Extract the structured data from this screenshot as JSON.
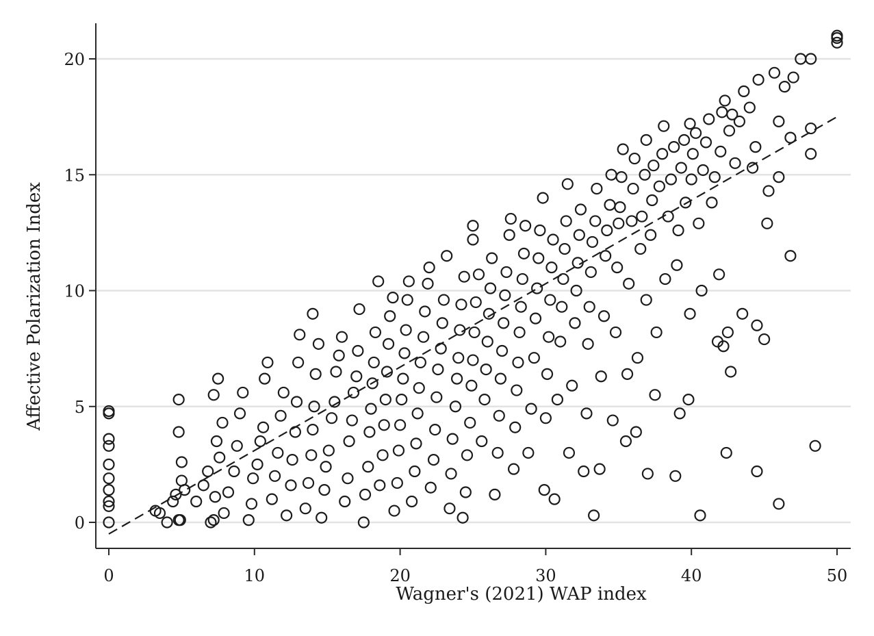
{
  "chart_data": {
    "type": "scatter",
    "title": "",
    "xlabel": "Wagner's (2021) WAP index",
    "ylabel": "Affective Polarization Index",
    "xlim": [
      -1,
      51
    ],
    "ylim": [
      -1.1,
      21.6
    ],
    "x_ticks": [
      0,
      10,
      20,
      30,
      40,
      50
    ],
    "y_ticks": [
      0,
      5,
      10,
      15,
      20
    ],
    "x_tick_labels": [
      "0",
      "10",
      "20",
      "30",
      "40",
      "50"
    ],
    "y_tick_labels": [
      "0",
      "5",
      "10",
      "15",
      "20"
    ],
    "grid": "horizontal",
    "legend": "none",
    "marker": "hollow-circle",
    "fit_line": {
      "style": "dashed",
      "x": [
        0,
        50
      ],
      "y": [
        -0.5,
        17.5
      ]
    },
    "series": [
      {
        "points": [
          [
            0,
            0
          ],
          [
            0,
            0.7
          ],
          [
            0,
            0.9
          ],
          [
            0,
            1.4
          ],
          [
            0,
            1.9
          ],
          [
            0,
            2.5
          ],
          [
            0,
            3.3
          ],
          [
            0,
            3.6
          ],
          [
            0,
            4.7
          ],
          [
            0,
            4.8
          ],
          [
            3.2,
            0.5
          ],
          [
            3.5,
            0.4
          ],
          [
            4.0,
            0.0
          ],
          [
            4.4,
            0.9
          ],
          [
            4.6,
            1.2
          ],
          [
            4.8,
            0.1
          ],
          [
            4.9,
            0.1
          ],
          [
            5.0,
            1.8
          ],
          [
            4.8,
            3.9
          ],
          [
            4.8,
            5.3
          ],
          [
            5.2,
            1.4
          ],
          [
            5.0,
            2.6
          ],
          [
            6.0,
            0.9
          ],
          [
            6.5,
            1.6
          ],
          [
            6.8,
            2.2
          ],
          [
            7.0,
            0.0
          ],
          [
            7.2,
            0.1
          ],
          [
            7.3,
            1.1
          ],
          [
            7.6,
            2.8
          ],
          [
            7.4,
            3.5
          ],
          [
            7.8,
            4.3
          ],
          [
            7.2,
            5.5
          ],
          [
            7.5,
            6.2
          ],
          [
            7.9,
            0.4
          ],
          [
            8.2,
            1.3
          ],
          [
            8.6,
            2.2
          ],
          [
            8.8,
            3.3
          ],
          [
            9.0,
            4.7
          ],
          [
            9.2,
            5.6
          ],
          [
            9.6,
            0.1
          ],
          [
            9.8,
            0.8
          ],
          [
            9.9,
            1.9
          ],
          [
            10.2,
            2.5
          ],
          [
            10.4,
            3.5
          ],
          [
            10.6,
            4.1
          ],
          [
            10.7,
            6.2
          ],
          [
            10.9,
            6.9
          ],
          [
            11.2,
            1.0
          ],
          [
            11.4,
            2.0
          ],
          [
            11.6,
            3.0
          ],
          [
            11.8,
            4.6
          ],
          [
            12.0,
            5.6
          ],
          [
            12.2,
            0.3
          ],
          [
            12.5,
            1.6
          ],
          [
            12.6,
            2.7
          ],
          [
            12.8,
            3.9
          ],
          [
            12.9,
            5.2
          ],
          [
            13.0,
            6.9
          ],
          [
            13.1,
            8.1
          ],
          [
            13.5,
            0.6
          ],
          [
            13.7,
            1.7
          ],
          [
            13.9,
            2.9
          ],
          [
            14.0,
            4.0
          ],
          [
            14.1,
            5.0
          ],
          [
            14.2,
            6.4
          ],
          [
            14.4,
            7.7
          ],
          [
            14.0,
            9.0
          ],
          [
            14.6,
            0.2
          ],
          [
            14.8,
            1.4
          ],
          [
            14.9,
            2.4
          ],
          [
            15.1,
            3.1
          ],
          [
            15.3,
            4.5
          ],
          [
            15.5,
            5.2
          ],
          [
            15.6,
            6.5
          ],
          [
            15.8,
            7.2
          ],
          [
            16.0,
            8.0
          ],
          [
            16.2,
            0.9
          ],
          [
            16.4,
            1.9
          ],
          [
            16.5,
            3.5
          ],
          [
            16.7,
            4.4
          ],
          [
            16.8,
            5.6
          ],
          [
            17.0,
            6.3
          ],
          [
            17.1,
            7.4
          ],
          [
            17.2,
            9.2
          ],
          [
            17.5,
            0.0
          ],
          [
            17.6,
            1.2
          ],
          [
            17.8,
            2.4
          ],
          [
            17.9,
            3.9
          ],
          [
            18.0,
            4.9
          ],
          [
            18.1,
            6.0
          ],
          [
            18.2,
            6.9
          ],
          [
            18.3,
            8.2
          ],
          [
            18.5,
            10.4
          ],
          [
            18.6,
            1.6
          ],
          [
            18.8,
            2.9
          ],
          [
            18.9,
            4.2
          ],
          [
            19.0,
            5.3
          ],
          [
            19.1,
            6.5
          ],
          [
            19.2,
            7.7
          ],
          [
            19.3,
            8.9
          ],
          [
            19.5,
            9.7
          ],
          [
            19.6,
            0.5
          ],
          [
            19.8,
            1.7
          ],
          [
            19.9,
            3.1
          ],
          [
            20.0,
            4.2
          ],
          [
            20.1,
            5.3
          ],
          [
            20.2,
            6.2
          ],
          [
            20.3,
            7.3
          ],
          [
            20.4,
            8.3
          ],
          [
            20.5,
            9.6
          ],
          [
            20.6,
            10.4
          ],
          [
            20.8,
            0.9
          ],
          [
            21.0,
            2.2
          ],
          [
            21.1,
            3.4
          ],
          [
            21.2,
            4.7
          ],
          [
            21.3,
            5.8
          ],
          [
            21.4,
            6.9
          ],
          [
            21.6,
            8.0
          ],
          [
            21.7,
            9.1
          ],
          [
            21.9,
            10.3
          ],
          [
            22.0,
            11.0
          ],
          [
            22.1,
            1.5
          ],
          [
            22.3,
            2.7
          ],
          [
            22.4,
            4.0
          ],
          [
            22.5,
            5.4
          ],
          [
            22.6,
            6.6
          ],
          [
            22.8,
            7.5
          ],
          [
            22.9,
            8.6
          ],
          [
            23.0,
            9.6
          ],
          [
            23.2,
            11.5
          ],
          [
            23.4,
            0.6
          ],
          [
            23.5,
            2.1
          ],
          [
            23.6,
            3.6
          ],
          [
            23.8,
            5.0
          ],
          [
            23.9,
            6.2
          ],
          [
            24.0,
            7.1
          ],
          [
            24.1,
            8.3
          ],
          [
            24.2,
            9.4
          ],
          [
            24.3,
            0.2
          ],
          [
            24.4,
            10.6
          ],
          [
            24.5,
            1.3
          ],
          [
            24.6,
            2.9
          ],
          [
            24.8,
            4.3
          ],
          [
            24.9,
            5.9
          ],
          [
            25.0,
            7.0
          ],
          [
            25.1,
            8.2
          ],
          [
            25.2,
            9.5
          ],
          [
            25.0,
            12.2
          ],
          [
            25.0,
            12.8
          ],
          [
            25.4,
            10.7
          ],
          [
            25.6,
            3.5
          ],
          [
            25.8,
            5.3
          ],
          [
            25.9,
            6.6
          ],
          [
            26.0,
            7.8
          ],
          [
            26.1,
            9.0
          ],
          [
            26.2,
            10.1
          ],
          [
            26.3,
            11.4
          ],
          [
            26.5,
            1.2
          ],
          [
            26.7,
            3.0
          ],
          [
            26.8,
            4.6
          ],
          [
            26.9,
            6.2
          ],
          [
            27.0,
            7.4
          ],
          [
            27.1,
            8.6
          ],
          [
            27.2,
            9.8
          ],
          [
            27.3,
            10.8
          ],
          [
            27.5,
            12.4
          ],
          [
            27.6,
            13.1
          ],
          [
            27.8,
            2.3
          ],
          [
            27.9,
            4.1
          ],
          [
            28.0,
            5.7
          ],
          [
            28.1,
            6.9
          ],
          [
            28.2,
            8.2
          ],
          [
            28.3,
            9.3
          ],
          [
            28.4,
            10.5
          ],
          [
            28.5,
            11.6
          ],
          [
            28.6,
            12.8
          ],
          [
            28.8,
            3.0
          ],
          [
            29.0,
            4.9
          ],
          [
            29.2,
            7.1
          ],
          [
            29.3,
            8.8
          ],
          [
            29.4,
            10.1
          ],
          [
            29.5,
            11.4
          ],
          [
            29.6,
            12.6
          ],
          [
            29.8,
            14.0
          ],
          [
            29.9,
            1.4
          ],
          [
            30.0,
            4.5
          ],
          [
            30.1,
            6.4
          ],
          [
            30.2,
            8.0
          ],
          [
            30.3,
            9.6
          ],
          [
            30.4,
            11.0
          ],
          [
            30.5,
            12.2
          ],
          [
            30.6,
            1.0
          ],
          [
            30.8,
            5.3
          ],
          [
            31.0,
            7.8
          ],
          [
            31.1,
            9.3
          ],
          [
            31.2,
            10.5
          ],
          [
            31.3,
            11.8
          ],
          [
            31.4,
            13.0
          ],
          [
            31.5,
            14.6
          ],
          [
            31.6,
            3.0
          ],
          [
            31.8,
            5.9
          ],
          [
            32.0,
            8.6
          ],
          [
            32.1,
            10.0
          ],
          [
            32.2,
            11.2
          ],
          [
            32.3,
            12.4
          ],
          [
            32.4,
            13.5
          ],
          [
            32.6,
            2.2
          ],
          [
            32.8,
            4.7
          ],
          [
            32.9,
            7.7
          ],
          [
            33.0,
            9.3
          ],
          [
            33.1,
            10.8
          ],
          [
            33.2,
            12.1
          ],
          [
            33.3,
            0.3
          ],
          [
            33.4,
            13.0
          ],
          [
            33.5,
            14.4
          ],
          [
            33.7,
            2.3
          ],
          [
            33.8,
            6.3
          ],
          [
            34.0,
            8.9
          ],
          [
            34.1,
            11.5
          ],
          [
            34.2,
            12.6
          ],
          [
            34.4,
            13.7
          ],
          [
            34.5,
            15.0
          ],
          [
            34.6,
            4.4
          ],
          [
            34.8,
            8.2
          ],
          [
            34.9,
            11.0
          ],
          [
            35.0,
            12.9
          ],
          [
            35.1,
            13.6
          ],
          [
            35.2,
            14.9
          ],
          [
            35.3,
            16.1
          ],
          [
            35.5,
            3.5
          ],
          [
            35.6,
            6.4
          ],
          [
            35.7,
            10.3
          ],
          [
            35.9,
            13.0
          ],
          [
            36.0,
            14.4
          ],
          [
            36.1,
            15.7
          ],
          [
            36.2,
            3.9
          ],
          [
            36.3,
            7.1
          ],
          [
            36.5,
            11.8
          ],
          [
            36.6,
            13.2
          ],
          [
            36.8,
            15.0
          ],
          [
            36.9,
            16.5
          ],
          [
            36.9,
            9.6
          ],
          [
            37.0,
            2.1
          ],
          [
            37.2,
            12.4
          ],
          [
            37.3,
            13.9
          ],
          [
            37.4,
            15.4
          ],
          [
            37.5,
            5.5
          ],
          [
            37.6,
            8.2
          ],
          [
            37.8,
            14.5
          ],
          [
            38.0,
            15.9
          ],
          [
            38.1,
            17.1
          ],
          [
            38.2,
            10.5
          ],
          [
            38.4,
            13.2
          ],
          [
            38.6,
            14.8
          ],
          [
            38.8,
            16.2
          ],
          [
            38.9,
            2.0
          ],
          [
            39.0,
            11.1
          ],
          [
            39.1,
            12.6
          ],
          [
            39.2,
            4.7
          ],
          [
            39.3,
            15.3
          ],
          [
            39.5,
            16.5
          ],
          [
            39.6,
            13.8
          ],
          [
            39.8,
            5.3
          ],
          [
            39.9,
            17.2
          ],
          [
            39.9,
            9.0
          ],
          [
            40.0,
            14.8
          ],
          [
            40.1,
            15.9
          ],
          [
            40.3,
            16.8
          ],
          [
            40.5,
            12.9
          ],
          [
            40.6,
            0.3
          ],
          [
            40.7,
            10.0
          ],
          [
            40.8,
            15.2
          ],
          [
            41.0,
            16.4
          ],
          [
            41.2,
            17.4
          ],
          [
            41.4,
            13.8
          ],
          [
            41.6,
            14.9
          ],
          [
            41.8,
            7.8
          ],
          [
            41.9,
            10.7
          ],
          [
            42.0,
            16.0
          ],
          [
            42.1,
            17.7
          ],
          [
            42.2,
            7.6
          ],
          [
            42.3,
            18.2
          ],
          [
            42.4,
            3.0
          ],
          [
            42.5,
            8.2
          ],
          [
            42.6,
            16.9
          ],
          [
            42.7,
            6.5
          ],
          [
            42.8,
            17.6
          ],
          [
            43.0,
            15.5
          ],
          [
            43.3,
            17.3
          ],
          [
            43.5,
            9.0
          ],
          [
            43.6,
            18.6
          ],
          [
            44.0,
            17.9
          ],
          [
            44.2,
            15.3
          ],
          [
            44.4,
            16.2
          ],
          [
            44.5,
            2.2
          ],
          [
            44.5,
            8.5
          ],
          [
            44.6,
            19.1
          ],
          [
            45.0,
            7.9
          ],
          [
            45.2,
            12.9
          ],
          [
            45.3,
            14.3
          ],
          [
            45.7,
            19.4
          ],
          [
            46.0,
            14.9
          ],
          [
            46.0,
            0.8
          ],
          [
            46.0,
            17.3
          ],
          [
            46.4,
            18.8
          ],
          [
            46.8,
            11.5
          ],
          [
            46.8,
            16.6
          ],
          [
            47.0,
            19.2
          ],
          [
            47.5,
            20.0
          ],
          [
            48.2,
            20.0
          ],
          [
            48.2,
            15.9
          ],
          [
            48.2,
            17.0
          ],
          [
            48.5,
            3.3
          ],
          [
            50.0,
            20.7
          ],
          [
            50.0,
            20.9
          ],
          [
            50.0,
            21.0
          ]
        ]
      }
    ]
  }
}
